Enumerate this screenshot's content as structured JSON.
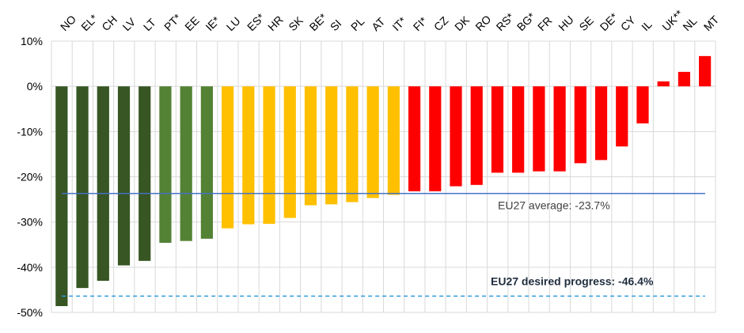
{
  "chart_data": {
    "type": "bar",
    "categories": [
      "NO",
      "EL*",
      "CH",
      "LV",
      "LT",
      "PT*",
      "EE",
      "IE*",
      "LU",
      "ES*",
      "HR",
      "SK",
      "BE*",
      "SI",
      "PL",
      "AT",
      "IT*",
      "FI*",
      "CZ",
      "DK",
      "RO",
      "RS*",
      "BG*",
      "FR",
      "HU",
      "SE",
      "DE*",
      "CY",
      "IL",
      "UK**",
      "NL",
      "MT"
    ],
    "values": [
      -48.6,
      -44.6,
      -43.0,
      -39.6,
      -38.6,
      -34.6,
      -34.2,
      -33.7,
      -31.4,
      -30.5,
      -30.4,
      -29.1,
      -26.3,
      -26.1,
      -25.6,
      -24.7,
      -24.0,
      -23.2,
      -23.2,
      -22.1,
      -21.8,
      -19.1,
      -19.1,
      -18.8,
      -18.8,
      -17.0,
      -16.3,
      -13.3,
      -8.2,
      1.1,
      3.2,
      6.7
    ],
    "bar_colors": [
      "#375623",
      "#375623",
      "#375623",
      "#375623",
      "#375623",
      "#548235",
      "#548235",
      "#548235",
      "#ffc000",
      "#ffc000",
      "#ffc000",
      "#ffc000",
      "#ffc000",
      "#ffc000",
      "#ffc000",
      "#ffc000",
      "#ffc000",
      "#ff0000",
      "#ff0000",
      "#ff0000",
      "#ff0000",
      "#ff0000",
      "#ff0000",
      "#ff0000",
      "#ff0000",
      "#ff0000",
      "#ff0000",
      "#ff0000",
      "#ff0000",
      "#ff0000",
      "#ff0000",
      "#ff0000"
    ],
    "ylim": [
      -50,
      10
    ],
    "yticks": [
      "10%",
      "0%",
      "-10%",
      "-20%",
      "-30%",
      "-40%",
      "-50%"
    ],
    "ytick_values": [
      10,
      0,
      -10,
      -20,
      -30,
      -40,
      -50
    ],
    "grid": true,
    "reference_lines": [
      {
        "label": "EU27 average: -23.7%",
        "value": -23.7,
        "color": "#4472c4",
        "style": "solid"
      },
      {
        "label": "EU27 desired progress: -46.4%",
        "value": -46.4,
        "color": "#2e9be0",
        "style": "dashed"
      }
    ]
  }
}
